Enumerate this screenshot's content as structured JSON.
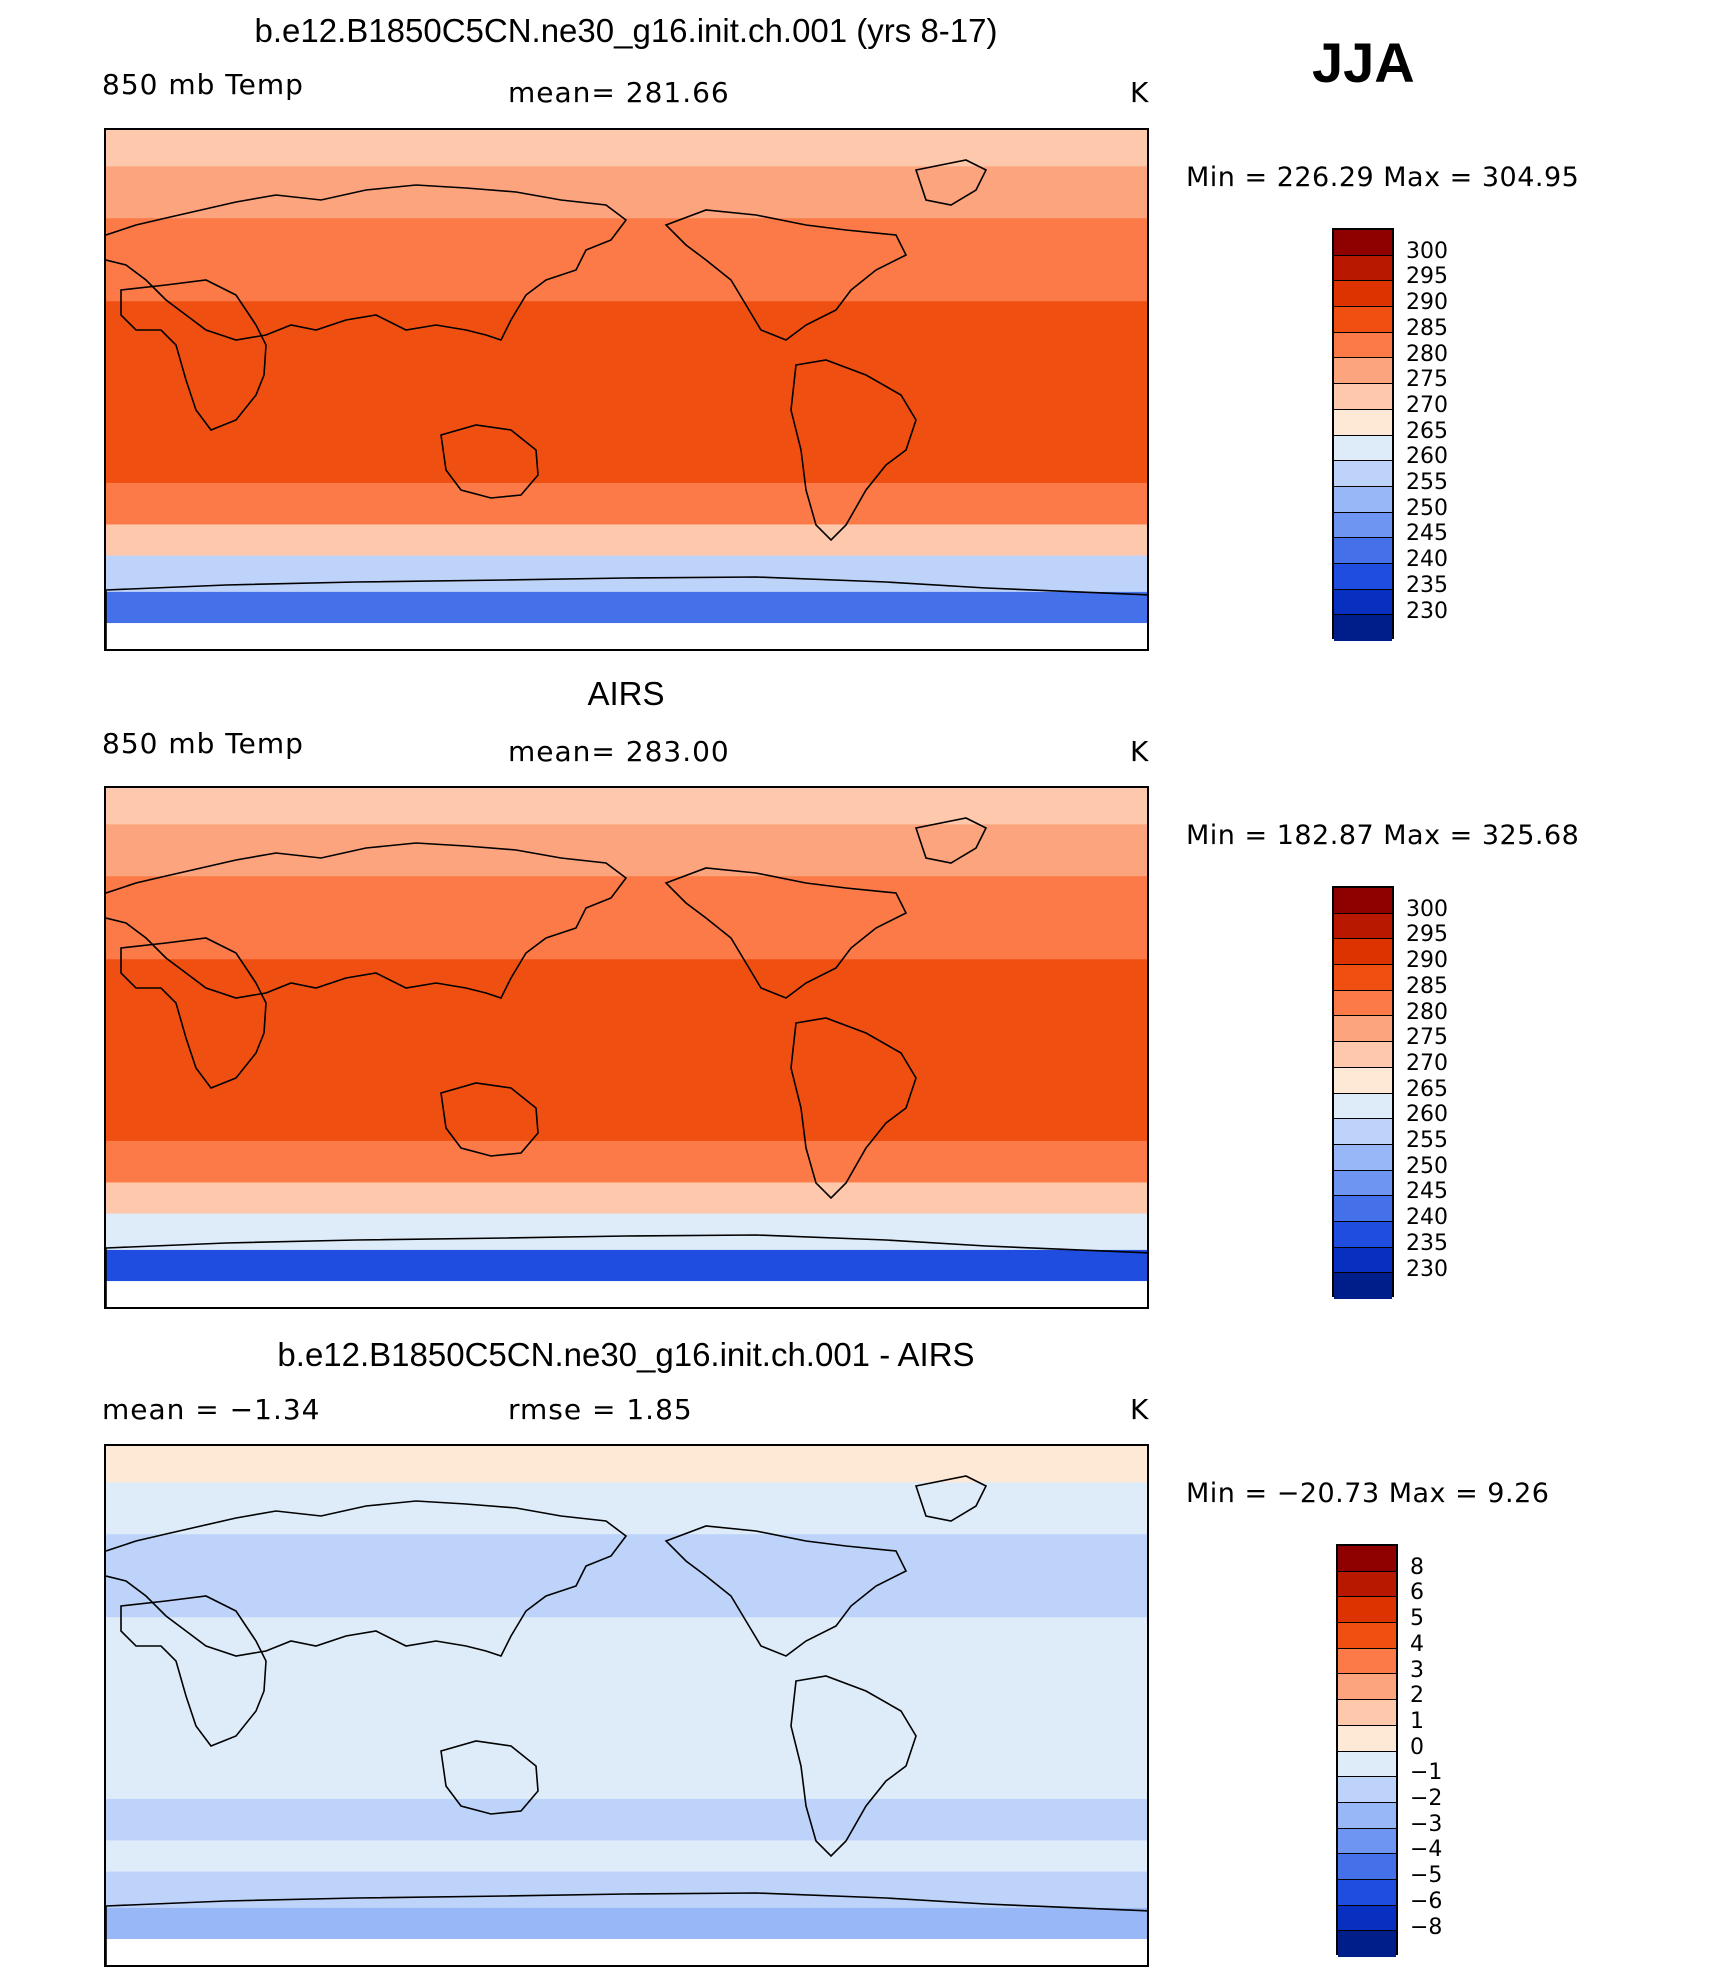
{
  "season": "JJA",
  "chart_data": [
    {
      "type": "heatmap",
      "title": "b.e12.B1850C5CN.ne30_g16.init.ch.001 (yrs 8-17)",
      "variable": "850 mb Temp",
      "stat_text": "mean=  281.66",
      "units": "K",
      "min_max": "Min  =  226.29  Max  =  304.95",
      "min": 226.29,
      "max": 304.95,
      "mean": 281.66,
      "colorbar": {
        "levels": [
          "300",
          "295",
          "290",
          "285",
          "280",
          "275",
          "270",
          "265",
          "260",
          "255",
          "250",
          "245",
          "240",
          "235",
          "230"
        ],
        "colors": [
          "#8f0000",
          "#b81800",
          "#dc3300",
          "#f04f12",
          "#fb7a47",
          "#fca47d",
          "#fdc8ab",
          "#fee8d6",
          "#deecfa",
          "#bdd3f9",
          "#97b7f7",
          "#6f95f2",
          "#4470ea",
          "#1f4de0",
          "#0730c0",
          "#001e8a"
        ]
      },
      "zones": [
        {
          "band": "north-pole",
          "value": 272
        },
        {
          "band": "north-high",
          "value": 277
        },
        {
          "band": "north-mid",
          "value": 282
        },
        {
          "band": "tropics",
          "value": 287
        },
        {
          "band": "south-mid",
          "value": 281
        },
        {
          "band": "south-sub",
          "value": 270
        },
        {
          "band": "south-high",
          "value": 258
        },
        {
          "band": "antarctic-coast",
          "value": 242
        }
      ]
    },
    {
      "type": "heatmap",
      "title": "AIRS",
      "variable": "850 mb Temp",
      "stat_text": "mean=  283.00",
      "units": "K",
      "min_max": "Min  =  182.87  Max  =  325.68",
      "min": 182.87,
      "max": 325.68,
      "mean": 283.0,
      "colorbar": {
        "levels": [
          "300",
          "295",
          "290",
          "285",
          "280",
          "275",
          "270",
          "265",
          "260",
          "255",
          "250",
          "245",
          "240",
          "235",
          "230"
        ],
        "colors": [
          "#8f0000",
          "#b81800",
          "#dc3300",
          "#f04f12",
          "#fb7a47",
          "#fca47d",
          "#fdc8ab",
          "#fee8d6",
          "#deecfa",
          "#bdd3f9",
          "#97b7f7",
          "#6f95f2",
          "#4470ea",
          "#1f4de0",
          "#0730c0",
          "#001e8a"
        ]
      },
      "zones": [
        {
          "band": "north-pole",
          "value": 273
        },
        {
          "band": "north-high",
          "value": 278
        },
        {
          "band": "north-mid",
          "value": 283
        },
        {
          "band": "tropics",
          "value": 288
        },
        {
          "band": "south-mid",
          "value": 282
        },
        {
          "band": "south-sub",
          "value": 272
        },
        {
          "band": "south-high",
          "value": 260
        },
        {
          "band": "antarctic-coast",
          "value": 238
        }
      ]
    },
    {
      "type": "heatmap",
      "title": "b.e12.B1850C5CN.ne30_g16.init.ch.001 - AIRS",
      "stat_left": "mean  =     −1.34",
      "stat_text": "rmse  =     1.85",
      "units": "K",
      "min_max": "Min  =  −20.73  Max  =     9.26",
      "min": -20.73,
      "max": 9.26,
      "mean": -1.34,
      "rmse": 1.85,
      "colorbar": {
        "levels": [
          "8",
          "6",
          "5",
          "4",
          "3",
          "2",
          "1",
          "0",
          "−1",
          "−2",
          "−3",
          "−4",
          "−5",
          "−6",
          "−8"
        ],
        "colors": [
          "#8f0000",
          "#b81800",
          "#dc3300",
          "#f04f12",
          "#fb7a47",
          "#fca47d",
          "#fdc8ab",
          "#fee8d6",
          "#deecfa",
          "#bdd3f9",
          "#97b7f7",
          "#6f95f2",
          "#4470ea",
          "#1f4de0",
          "#0730c0",
          "#001e8a"
        ]
      },
      "zones": [
        {
          "band": "north-pole",
          "value": 0.5
        },
        {
          "band": "north-high",
          "value": -1
        },
        {
          "band": "north-mid",
          "value": -1.5
        },
        {
          "band": "tropics",
          "value": -1
        },
        {
          "band": "south-mid",
          "value": -2
        },
        {
          "band": "south-sub",
          "value": -1
        },
        {
          "band": "south-high",
          "value": -2
        },
        {
          "band": "antarctic-coast",
          "value": -2.5
        }
      ]
    }
  ]
}
